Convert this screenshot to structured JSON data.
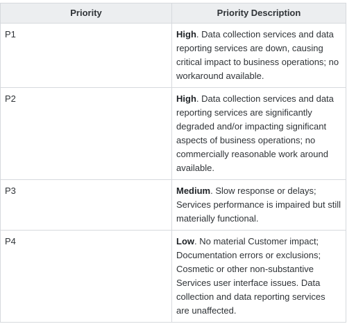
{
  "table": {
    "headers": [
      "Priority",
      "Priority Description"
    ],
    "rows": [
      {
        "priority": "P1",
        "severity": "High",
        "description": ". Data collection services and data reporting services are down, causing critical impact to business operations; no workaround available."
      },
      {
        "priority": "P2",
        "severity": "High",
        "description": ". Data collection services and data reporting services are significantly degraded and/or impacting significant aspects of business operations; no commercially reasonable work around available."
      },
      {
        "priority": "P3",
        "severity": "Medium",
        "description": ". Slow response or delays; Services performance is impaired but still materially functional."
      },
      {
        "priority": "P4",
        "severity": "Low",
        "description": ". No material Customer impact; Documentation errors or exclusions; Cosmetic or other non-substantive Services user interface issues. Data collection and data reporting services are unaffected."
      }
    ]
  }
}
